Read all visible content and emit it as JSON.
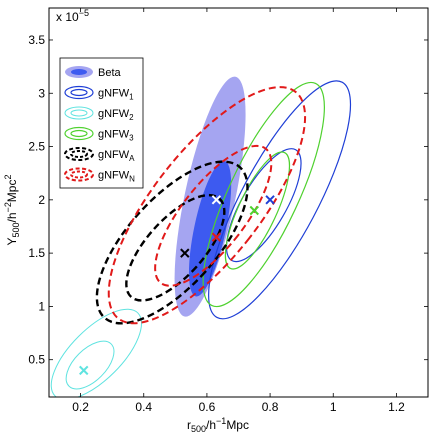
{
  "chart_data": {
    "type": "contour",
    "title": "",
    "xlabel": "r",
    "xlabel_sub": "500",
    "xlabel_tail1": "/h",
    "xlabel_sup": "−1",
    "xlabel_tail2": "Mpc",
    "ylabel": "Y",
    "ylabel_sub": "500",
    "ylabel_tail1": "/h",
    "ylabel_sup": "−2",
    "ylabel_tail2": "Mpc",
    "ylabel_sup2": "2",
    "y_multiplier_base": "x 10",
    "y_multiplier_exp": "−5",
    "xlim": [
      0.1,
      1.3
    ],
    "ylim": [
      0.15,
      3.8
    ],
    "xticks": [
      "0.2",
      "0.4",
      "0.6",
      "0.8",
      "1",
      "1.2"
    ],
    "xtick_values": [
      0.2,
      0.4,
      0.6,
      0.8,
      1.0,
      1.2
    ],
    "yticks": [
      "0.5",
      "1",
      "1.5",
      "2",
      "2.5",
      "3",
      "3.5"
    ],
    "ytick_values": [
      0.5,
      1.0,
      1.5,
      2.0,
      2.5,
      3.0,
      3.5
    ],
    "legend_position": "top-left",
    "series": [
      {
        "name": "Beta",
        "sub": "",
        "style": "filled",
        "color": "#5b5be6",
        "inner_color": "#2a4cf0",
        "dash": "",
        "best_fit": [
          0.63,
          2.0
        ],
        "marker_color": "#ffffff",
        "contours": [
          {
            "center": [
              0.61,
              2.03
            ],
            "rx": 0.08,
            "ry": 1.15,
            "tilt": 12
          },
          {
            "center": [
              0.61,
              1.73
            ],
            "rx": 0.05,
            "ry": 0.65,
            "tilt": 12
          }
        ]
      },
      {
        "name": "gNFW",
        "sub": "1",
        "style": "line",
        "color": "#1f3fd6",
        "dash": "",
        "width": 1.2,
        "best_fit": [
          0.8,
          2.0
        ],
        "marker_color": "#1f3fd6",
        "contours": [
          {
            "center": [
              0.83,
              2.0
            ],
            "rx": 0.12,
            "ry": 1.25,
            "tilt": 28
          },
          {
            "center": [
              0.78,
              1.95
            ],
            "rx": 0.07,
            "ry": 0.6,
            "tilt": 30
          }
        ]
      },
      {
        "name": "gNFW",
        "sub": "2",
        "style": "line",
        "color": "#5fe3e0",
        "dash": "",
        "width": 1.0,
        "best_fit": [
          0.21,
          0.4
        ],
        "marker_color": "#5fe3e0",
        "contours": [
          {
            "center": [
              0.25,
              0.55
            ],
            "rx": 0.08,
            "ry": 0.55,
            "tilt": 45
          },
          {
            "center": [
              0.23,
              0.45
            ],
            "rx": 0.05,
            "ry": 0.28,
            "tilt": 45
          }
        ]
      },
      {
        "name": "gNFW",
        "sub": "3",
        "style": "line",
        "color": "#4fd12f",
        "dash": "",
        "width": 1.2,
        "best_fit": [
          0.75,
          1.9
        ],
        "marker_color": "#4fd12f",
        "contours": [
          {
            "center": [
              0.78,
              2.05
            ],
            "rx": 0.11,
            "ry": 1.15,
            "tilt": 25
          },
          {
            "center": [
              0.76,
              1.9
            ],
            "rx": 0.06,
            "ry": 0.6,
            "tilt": 25
          }
        ]
      },
      {
        "name": "gNFW",
        "sub": "A",
        "style": "line",
        "color": "#000000",
        "dash": "7,4",
        "width": 2.4,
        "best_fit": [
          0.53,
          1.5
        ],
        "marker_color": "#000000",
        "contours": [
          {
            "center": [
              0.49,
              1.6
            ],
            "rx": 0.14,
            "ry": 0.95,
            "tilt": 42
          },
          {
            "center": [
              0.5,
              1.55
            ],
            "rx": 0.09,
            "ry": 0.62,
            "tilt": 42
          }
        ]
      },
      {
        "name": "gNFW",
        "sub": "N",
        "style": "line",
        "color": "#e11a1a",
        "dash": "7,4",
        "width": 2.0,
        "best_fit": [
          0.63,
          1.65
        ],
        "marker_color": "#e11a1a",
        "contours": [
          {
            "center": [
              0.6,
              1.95
            ],
            "rx": 0.17,
            "ry": 1.35,
            "tilt": 38
          },
          {
            "center": [
              0.62,
              1.85
            ],
            "rx": 0.1,
            "ry": 0.8,
            "tilt": 38
          }
        ]
      }
    ]
  }
}
